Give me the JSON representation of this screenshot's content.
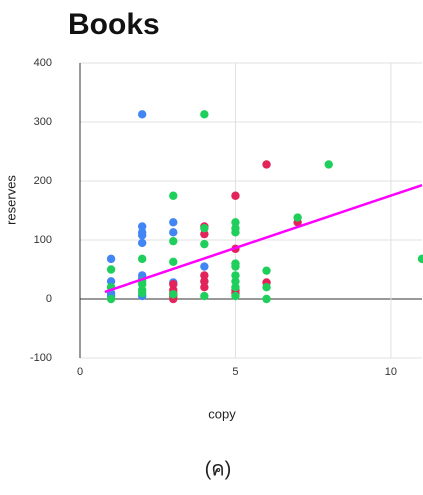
{
  "chart_data": {
    "type": "scatter",
    "title": "Books",
    "x_label": "copy",
    "y_label": "reserves",
    "caption": "(ค)",
    "xlim": [
      0,
      11
    ],
    "ylim": [
      -100,
      400
    ],
    "xticks": [
      0,
      5,
      10
    ],
    "yticks": [
      -100,
      0,
      100,
      200,
      300,
      400
    ],
    "grid": true,
    "series": [
      {
        "color": "#4285f4",
        "x": [
          1,
          1,
          1,
          1,
          1,
          2,
          2,
          2,
          2,
          2,
          2,
          2,
          2,
          3,
          3,
          3,
          4,
          4
        ],
        "values": [
          68,
          30,
          20,
          10,
          5,
          313,
          123,
          113,
          108,
          95,
          40,
          35,
          5,
          130,
          113,
          28,
          55,
          30
        ]
      },
      {
        "color": "#e2245a",
        "x": [
          3,
          3,
          3,
          3,
          3,
          4,
          4,
          4,
          4,
          4,
          5,
          5,
          5,
          5,
          6,
          6,
          7
        ],
        "values": [
          25,
          15,
          10,
          5,
          0,
          123,
          110,
          40,
          30,
          20,
          175,
          85,
          15,
          10,
          228,
          28,
          130
        ]
      },
      {
        "color": "#1fcf5b",
        "x": [
          1,
          1,
          1,
          2,
          2,
          2,
          2,
          2,
          3,
          3,
          3,
          3,
          4,
          4,
          4,
          4,
          5,
          5,
          5,
          5,
          5,
          5,
          5,
          5,
          5,
          6,
          6,
          6,
          7,
          8,
          11
        ],
        "values": [
          50,
          20,
          0,
          68,
          30,
          25,
          15,
          10,
          175,
          98,
          63,
          8,
          313,
          93,
          120,
          5,
          130,
          120,
          113,
          60,
          55,
          40,
          30,
          20,
          5,
          48,
          20,
          0,
          138,
          228,
          68
        ]
      }
    ],
    "trendline": {
      "color": "#ff00ff",
      "x": [
        0.8,
        11
      ],
      "values": [
        12,
        193
      ]
    }
  }
}
